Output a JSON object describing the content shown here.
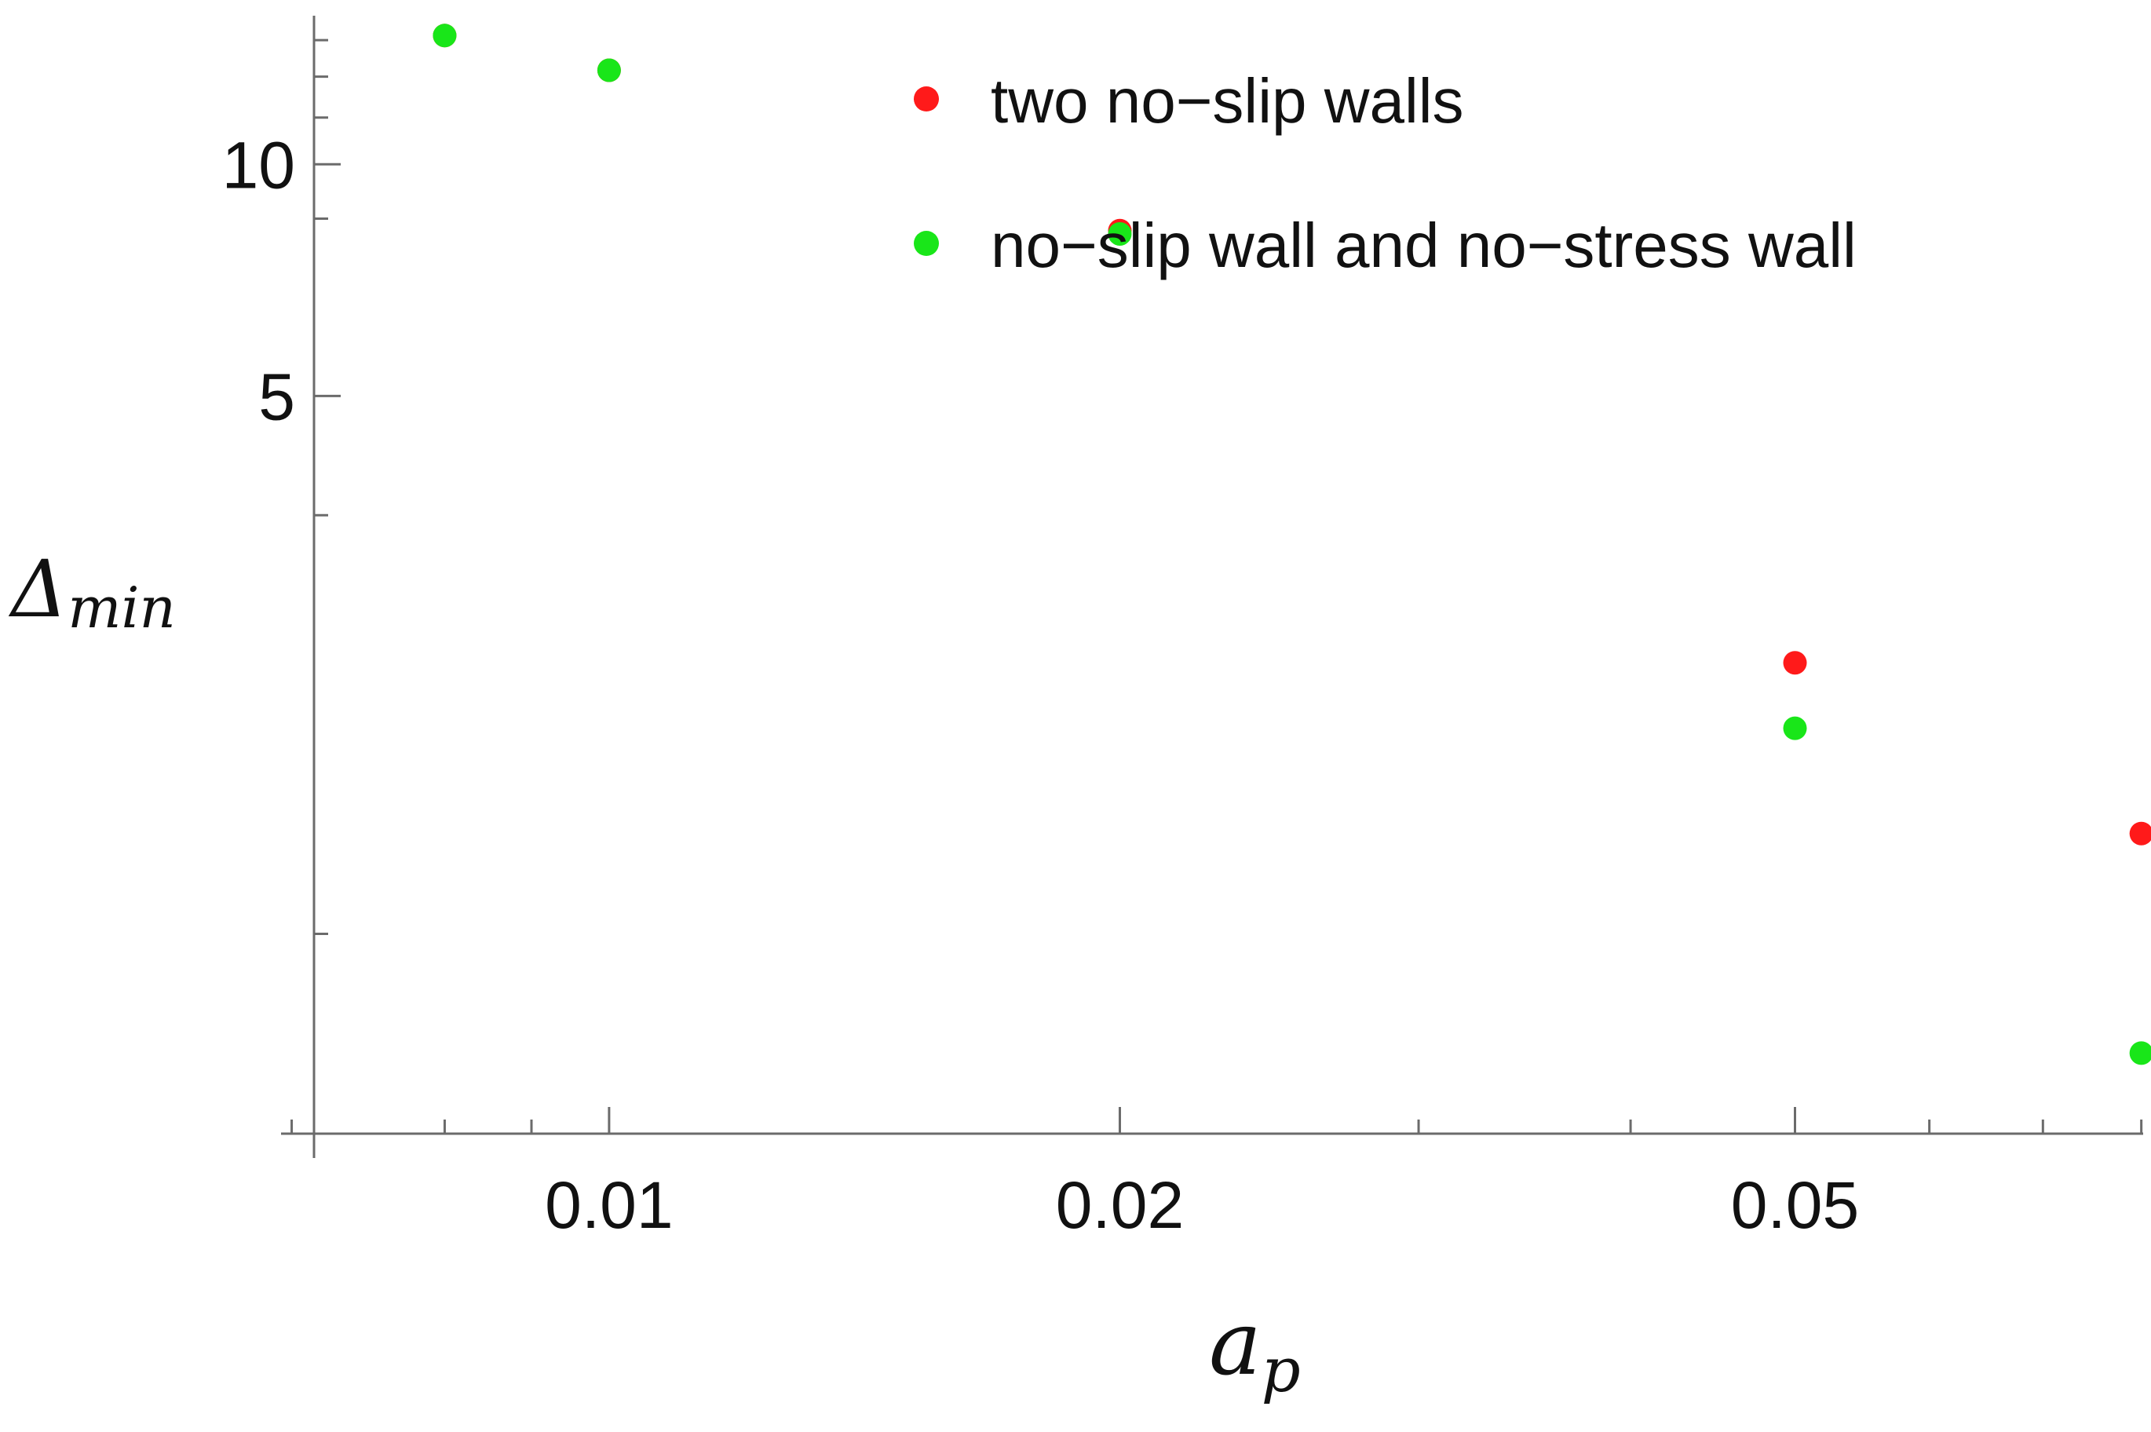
{
  "chart_data": {
    "type": "scatter",
    "title": "",
    "xlabel": "a",
    "xlabel_sub": "p",
    "ylabel": "Δ",
    "ylabel_sub": "min",
    "xscale": "log",
    "xlim": [
      0.0067,
      0.0802
    ],
    "ylim": [
      0.55,
      15.6
    ],
    "x_ticks": [
      {
        "value": 0.01,
        "label": "0.01"
      },
      {
        "value": 0.02,
        "label": "0.02"
      },
      {
        "value": 0.05,
        "label": "0.05"
      }
    ],
    "y_ticks": [
      {
        "value": 5,
        "label": "5"
      },
      {
        "value": 10,
        "label": "10"
      }
    ],
    "y_minor_ticks": [
      1,
      3.5,
      8.5,
      11.5,
      13,
      14.5
    ],
    "x_minor_ticks": [
      0.0065,
      0.008,
      0.009,
      0.03,
      0.04,
      0.06,
      0.07,
      0.08
    ],
    "grid": false,
    "legend_position": "top-right",
    "series": [
      {
        "name": "two no−slip walls",
        "color": "#ff1a1a",
        "x": [
          0.008,
          0.01,
          0.02,
          0.05,
          0.08
        ],
        "y": [
          14.7,
          13.25,
          8.2,
          2.25,
          1.35
        ]
      },
      {
        "name": "no−slip wall and no−stress wall",
        "color": "#19e619",
        "x": [
          0.008,
          0.01,
          0.02,
          0.05,
          0.08
        ],
        "y": [
          14.7,
          13.25,
          8.12,
          1.85,
          0.7
        ]
      }
    ]
  }
}
